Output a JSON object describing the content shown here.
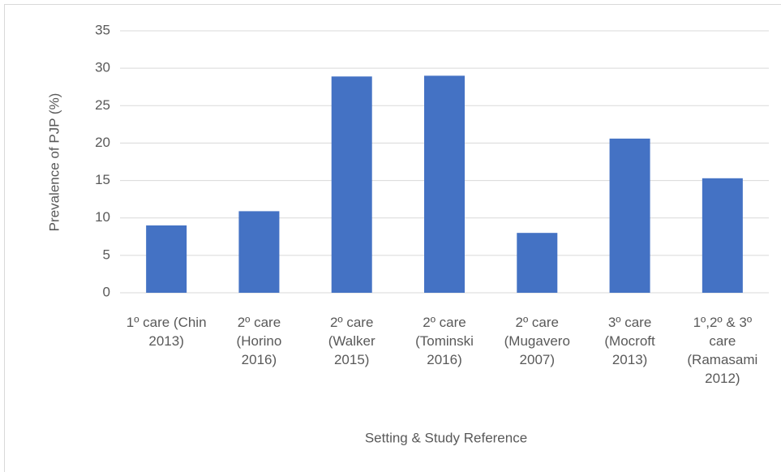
{
  "chart_data": {
    "type": "bar",
    "categories": [
      "1º care (Chin 2013)",
      "2º care (Horino 2016)",
      "2º care (Walker 2015)",
      "2º care (Tominski 2016)",
      "2º care (Mugavero 2007)",
      "3º care (Mocroft 2013)",
      "1º,2º & 3º care (Ramasami 2012)"
    ],
    "values": [
      9,
      10.9,
      28.9,
      29,
      8,
      20.6,
      15.3
    ],
    "color": "#4472c4",
    "x_label": "Setting & Study Reference",
    "y_label": "Prevalence of PJP (%)",
    "ylim": [
      0,
      35
    ],
    "yticks": [
      0,
      5,
      10,
      15,
      20,
      25,
      30,
      35
    ],
    "grid": true
  }
}
